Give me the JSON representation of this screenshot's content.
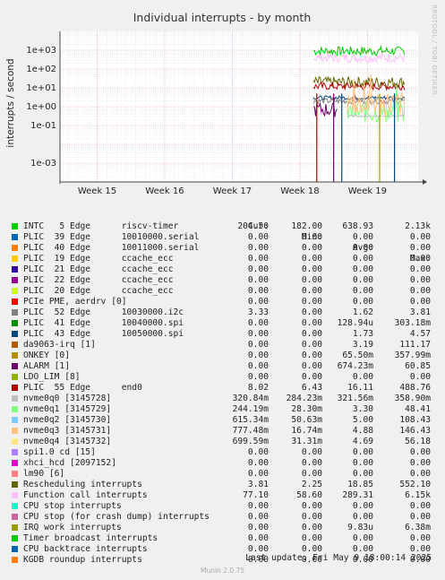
{
  "chart_data": {
    "type": "line",
    "title": "Individual interrupts - by month",
    "ylabel": "interrupts / second",
    "yscale": "log",
    "ylim": [
      0.0001,
      10000
    ],
    "y_ticks": [
      "1e-03",
      "1e-01",
      "1e+00",
      "1e+01",
      "1e+02",
      "1e+03"
    ],
    "x_ticks": [
      "Week 15",
      "Week 16",
      "Week 17",
      "Week 18",
      "Week 19"
    ],
    "grid": true,
    "legend_placement": "bottom",
    "columns": [
      "Cur:",
      "Min:",
      "Avg:",
      "Max:"
    ],
    "series": [
      {
        "name": "INTC   5 Edge      riscv-timer",
        "color": "#00cc00",
        "cur": "204.50",
        "min": "182.00",
        "avg": "638.93",
        "max": "2.13k"
      },
      {
        "name": "PLIC  39 Edge      10010000.serial",
        "color": "#0066b3",
        "cur": "0.00",
        "min": "0.00",
        "avg": "0.00",
        "max": "0.00"
      },
      {
        "name": "PLIC  40 Edge      10011000.serial",
        "color": "#ff8000",
        "cur": "0.00",
        "min": "0.00",
        "avg": "0.00",
        "max": "0.00"
      },
      {
        "name": "PLIC  19 Edge      ccache_ecc",
        "color": "#ffcc00",
        "cur": "0.00",
        "min": "0.00",
        "avg": "0.00",
        "max": "0.00"
      },
      {
        "name": "PLIC  21 Edge      ccache_ecc",
        "color": "#330099",
        "cur": "0.00",
        "min": "0.00",
        "avg": "0.00",
        "max": "0.00"
      },
      {
        "name": "PLIC  22 Edge      ccache_ecc",
        "color": "#990099",
        "cur": "0.00",
        "min": "0.00",
        "avg": "0.00",
        "max": "0.00"
      },
      {
        "name": "PLIC  20 Edge      ccache_ecc",
        "color": "#ccff00",
        "cur": "0.00",
        "min": "0.00",
        "avg": "0.00",
        "max": "0.00"
      },
      {
        "name": "PCIe PME, aerdrv [0]",
        "color": "#ff0000",
        "cur": "0.00",
        "min": "0.00",
        "avg": "0.00",
        "max": "0.00"
      },
      {
        "name": "PLIC  52 Edge      10030000.i2c",
        "color": "#808080",
        "cur": "3.33",
        "min": "0.00",
        "avg": "1.62",
        "max": "3.81"
      },
      {
        "name": "PLIC  41 Edge      10040000.spi",
        "color": "#008f00",
        "cur": "0.00",
        "min": "0.00",
        "avg": "128.94u",
        "max": "303.18m"
      },
      {
        "name": "PLIC  43 Edge      10050000.spi",
        "color": "#00487d",
        "cur": "0.00",
        "min": "0.00",
        "avg": "1.73",
        "max": "4.57"
      },
      {
        "name": "da9063-irq [1]",
        "color": "#b35a00",
        "cur": "0.00",
        "min": "0.00",
        "avg": "3.19",
        "max": "111.17"
      },
      {
        "name": "ONKEY [0]",
        "color": "#b38f00",
        "cur": "0.00",
        "min": "0.00",
        "avg": "65.50m",
        "max": "357.99m"
      },
      {
        "name": "ALARM [1]",
        "color": "#6b006b",
        "cur": "0.00",
        "min": "0.00",
        "avg": "674.23m",
        "max": "60.85"
      },
      {
        "name": "LDO_LIM [8]",
        "color": "#8fb300",
        "cur": "0.00",
        "min": "0.00",
        "avg": "0.00",
        "max": "0.00"
      },
      {
        "name": "PLIC  55 Edge      end0",
        "color": "#b30000",
        "cur": "8.02",
        "min": "6.43",
        "avg": "16.11",
        "max": "488.76"
      },
      {
        "name": "nvme0q0 [3145728]",
        "color": "#bebebe",
        "cur": "320.84m",
        "min": "284.23m",
        "avg": "321.56m",
        "max": "358.90m"
      },
      {
        "name": "nvme0q1 [3145729]",
        "color": "#80ff80",
        "cur": "244.19m",
        "min": "28.30m",
        "avg": "3.30",
        "max": "48.41"
      },
      {
        "name": "nvme0q2 [3145730]",
        "color": "#80c9ff",
        "cur": "615.34m",
        "min": "50.63m",
        "avg": "5.00",
        "max": "108.43"
      },
      {
        "name": "nvme0q3 [3145731]",
        "color": "#ffc080",
        "cur": "777.48m",
        "min": "16.74m",
        "avg": "4.88",
        "max": "146.43"
      },
      {
        "name": "nvme0q4 [3145732]",
        "color": "#ffe680",
        "cur": "699.59m",
        "min": "31.31m",
        "avg": "4.69",
        "max": "56.18"
      },
      {
        "name": "spi1.0 cd [15]",
        "color": "#aa80ff",
        "cur": "0.00",
        "min": "0.00",
        "avg": "0.00",
        "max": "0.00"
      },
      {
        "name": "xhci_hcd [2097152]",
        "color": "#ee00cc",
        "cur": "0.00",
        "min": "0.00",
        "avg": "0.00",
        "max": "0.00"
      },
      {
        "name": "lm90 [6]",
        "color": "#ff8080",
        "cur": "0.00",
        "min": "0.00",
        "avg": "0.00",
        "max": "0.00"
      },
      {
        "name": "Rescheduling interrupts",
        "color": "#666600",
        "cur": "3.81",
        "min": "2.25",
        "avg": "18.85",
        "max": "552.10"
      },
      {
        "name": "Function call interrupts",
        "color": "#ffbfff",
        "cur": "77.10",
        "min": "58.60",
        "avg": "289.31",
        "max": "6.15k"
      },
      {
        "name": "CPU stop interrupts",
        "color": "#00ffcc",
        "cur": "0.00",
        "min": "0.00",
        "avg": "0.00",
        "max": "0.00"
      },
      {
        "name": "CPU stop (for crash dump) interrupts",
        "color": "#cc6699",
        "cur": "0.00",
        "min": "0.00",
        "avg": "0.00",
        "max": "0.00"
      },
      {
        "name": "IRQ work interrupts",
        "color": "#999900",
        "cur": "0.00",
        "min": "0.00",
        "avg": "9.83u",
        "max": "6.38m"
      },
      {
        "name": "Timer broadcast interrupts",
        "color": "#00cc00",
        "cur": "0.00",
        "min": "0.00",
        "avg": "0.00",
        "max": "0.00"
      },
      {
        "name": "CPU backtrace interrupts",
        "color": "#0066b3",
        "cur": "0.00",
        "min": "0.00",
        "avg": "0.00",
        "max": "0.00"
      },
      {
        "name": "KGDB roundup interrupts",
        "color": "#ff8000",
        "cur": "0.00",
        "min": "0.00",
        "avg": "0.00",
        "max": "0.00"
      }
    ],
    "traces": [
      {
        "color": "#00cc00",
        "pattern": "flat",
        "level": 900,
        "amp": 0.25,
        "x_from": 18.2
      },
      {
        "color": "#ffbfff",
        "pattern": "flat",
        "level": 400,
        "amp": 0.25,
        "x_from": 18.2
      },
      {
        "color": "#666600",
        "pattern": "flat",
        "level": 20,
        "amp": 0.3,
        "x_from": 18.2
      },
      {
        "color": "#b30000",
        "pattern": "flat",
        "level": 12,
        "amp": 0.2,
        "x_from": 18.2
      },
      {
        "color": "#00487d",
        "pattern": "flat",
        "level": 3,
        "amp": 0.1,
        "x_from": 18.2
      },
      {
        "color": "#808080",
        "pattern": "flat",
        "level": 2,
        "amp": 0.15,
        "x_from": 18.2
      },
      {
        "color": "#80ff80",
        "pattern": "noisy",
        "level": 0.5,
        "amp": 0.6,
        "x_from": 18.7
      },
      {
        "color": "#ffc080",
        "pattern": "noisy",
        "level": 1.5,
        "amp": 0.7,
        "x_from": 18.7
      },
      {
        "color": "#bebebe",
        "pattern": "flat",
        "level": 0.32,
        "amp": 0.05,
        "x_from": 18.7
      },
      {
        "color": "#6b006b",
        "pattern": "dip",
        "level": 0.7,
        "amp": 0.4,
        "x_from": 18.2,
        "x_to": 18.55
      }
    ]
  },
  "footer": {
    "last_update": "Last update:  Fri May  9 18:00:14 2025",
    "munin": "Munin 2.0.75",
    "watermark": "RRDTOOL / TOBI OETIKER"
  }
}
